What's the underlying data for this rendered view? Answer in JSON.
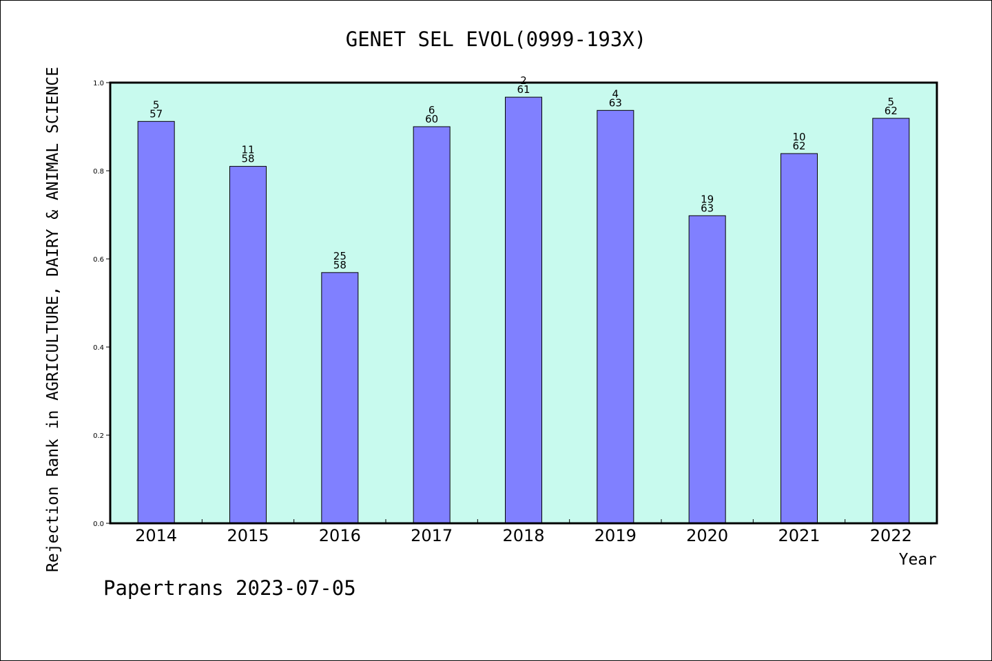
{
  "footer": "Papertrans 2023-07-05",
  "colors": {
    "plot_background": "#c8faee",
    "bar_fill": "#8080ff",
    "bar_stroke": "#000000",
    "axis": "#000000"
  },
  "chart_data": {
    "type": "bar",
    "title": "GENET SEL EVOL(0999-193X)",
    "xlabel": "Year",
    "ylabel": "Rejection Rank in AGRICULTURE, DAIRY & ANIMAL SCIENCE",
    "ylim": [
      0.0,
      1.0
    ],
    "yticks": [
      "0.0",
      "0.2",
      "0.4",
      "0.6",
      "0.8",
      "1.0"
    ],
    "grid": false,
    "categories": [
      "2014",
      "2015",
      "2016",
      "2017",
      "2018",
      "2019",
      "2020",
      "2021",
      "2022"
    ],
    "values": [
      0.912,
      0.81,
      0.569,
      0.9,
      0.967,
      0.937,
      0.698,
      0.839,
      0.919
    ],
    "rank": [
      "5",
      "11",
      "25",
      "6",
      "2",
      "4",
      "19",
      "10",
      "5"
    ],
    "total": [
      "57",
      "58",
      "58",
      "60",
      "61",
      "63",
      "63",
      "62",
      "62"
    ]
  }
}
